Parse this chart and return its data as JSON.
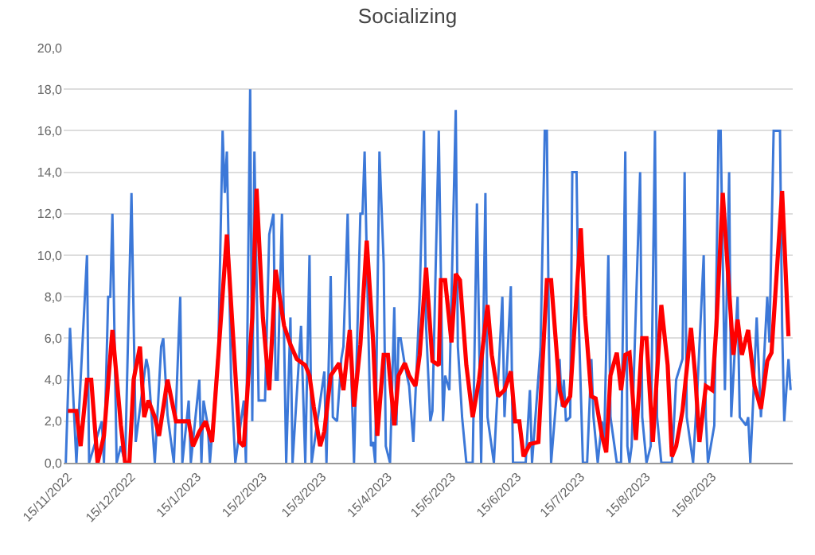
{
  "chart_data": {
    "type": "line",
    "title": "Socializing",
    "grid": "y",
    "marker": "none",
    "line_style": "solid",
    "xlim": [
      "2022-11-13",
      "2023-10-23"
    ],
    "xticks": [
      {
        "value": "2022-11-15",
        "label": "15/11/2022"
      },
      {
        "value": "2022-12-15",
        "label": "15/12/2022"
      },
      {
        "value": "2023-01-15",
        "label": "15/1/2023"
      },
      {
        "value": "2023-02-15",
        "label": "15/2/2023"
      },
      {
        "value": "2023-03-15",
        "label": "15/3/2023"
      },
      {
        "value": "2023-04-15",
        "label": "15/4/2023"
      },
      {
        "value": "2023-05-15",
        "label": "15/5/2023"
      },
      {
        "value": "2023-06-15",
        "label": "15/6/2023"
      },
      {
        "value": "2023-07-15",
        "label": "15/7/2023"
      },
      {
        "value": "2023-08-15",
        "label": "15/8/2023"
      },
      {
        "value": "2023-09-15",
        "label": "15/9/2023"
      }
    ],
    "ylim": [
      0,
      20
    ],
    "yticks": [
      {
        "value": 0,
        "label": "0,0"
      },
      {
        "value": 2,
        "label": "2,0"
      },
      {
        "value": 4,
        "label": "4,0"
      },
      {
        "value": 6,
        "label": "6,0"
      },
      {
        "value": 8,
        "label": "8,0"
      },
      {
        "value": 10,
        "label": "10,0"
      },
      {
        "value": 12,
        "label": "12,0"
      },
      {
        "value": 14,
        "label": "14,0"
      },
      {
        "value": 16,
        "label": "16,0"
      },
      {
        "value": 18,
        "label": "18,0"
      },
      {
        "value": 20,
        "label": "20,0"
      }
    ],
    "series": [
      {
        "color": "#3c78d8",
        "x": [
          "2022-11-14",
          "2022-11-16",
          "2022-11-19",
          "2022-11-24",
          "2022-11-25",
          "2022-12-01",
          "2022-12-02",
          "2022-12-04",
          "2022-12-05",
          "2022-12-06",
          "2022-12-08",
          "2022-12-10",
          "2022-12-12",
          "2022-12-15",
          "2022-12-17",
          "2022-12-22",
          "2022-12-23",
          "2022-12-26",
          "2022-12-29",
          "2022-12-30",
          "2023-01-01",
          "2023-01-04",
          "2023-01-07",
          "2023-01-08",
          "2023-01-11",
          "2023-01-12",
          "2023-01-16",
          "2023-01-17",
          "2023-01-18",
          "2023-01-20",
          "2023-01-21",
          "2023-01-25",
          "2023-01-27",
          "2023-01-28",
          "2023-01-29",
          "2023-01-31",
          "2023-02-02",
          "2023-02-06",
          "2023-02-07",
          "2023-02-09",
          "2023-02-10",
          "2023-02-11",
          "2023-02-13",
          "2023-02-16",
          "2023-02-18",
          "2023-02-20",
          "2023-02-21",
          "2023-02-22",
          "2023-02-24",
          "2023-02-26",
          "2023-02-28",
          "2023-03-01",
          "2023-03-05",
          "2023-03-07",
          "2023-03-09",
          "2023-03-10",
          "2023-03-16",
          "2023-03-17",
          "2023-03-19",
          "2023-03-20",
          "2023-03-22",
          "2023-03-24",
          "2023-03-25",
          "2023-03-27",
          "2023-03-28",
          "2023-03-30",
          "2023-04-02",
          "2023-04-03",
          "2023-04-04",
          "2023-04-05",
          "2023-04-07",
          "2023-04-08",
          "2023-04-09",
          "2023-04-11",
          "2023-04-13",
          "2023-04-14",
          "2023-04-16",
          "2023-04-18",
          "2023-04-19",
          "2023-04-20",
          "2023-04-21",
          "2023-04-23",
          "2023-04-25",
          "2023-04-27",
          "2023-04-29",
          "2023-04-30",
          "2023-05-02",
          "2023-05-03",
          "2023-05-05",
          "2023-05-06",
          "2023-05-09",
          "2023-05-11",
          "2023-05-12",
          "2023-05-14",
          "2023-05-17",
          "2023-05-18",
          "2023-05-20",
          "2023-05-22",
          "2023-05-25",
          "2023-05-27",
          "2023-05-29",
          "2023-05-31",
          "2023-06-01",
          "2023-06-04",
          "2023-06-08",
          "2023-06-09",
          "2023-06-12",
          "2023-06-13",
          "2023-06-19",
          "2023-06-21",
          "2023-06-22",
          "2023-06-26",
          "2023-06-28",
          "2023-06-29",
          "2023-06-30",
          "2023-07-01",
          "2023-07-05",
          "2023-07-06",
          "2023-07-07",
          "2023-07-08",
          "2023-07-10",
          "2023-07-11",
          "2023-07-13",
          "2023-07-14",
          "2023-07-16",
          "2023-07-18",
          "2023-07-20",
          "2023-07-21",
          "2023-07-23",
          "2023-07-25",
          "2023-07-26",
          "2023-07-28",
          "2023-07-29",
          "2023-08-01",
          "2023-08-03",
          "2023-08-05",
          "2023-08-06",
          "2023-08-07",
          "2023-08-08",
          "2023-08-12",
          "2023-08-13",
          "2023-08-15",
          "2023-08-17",
          "2023-08-19",
          "2023-08-20",
          "2023-08-22",
          "2023-08-27",
          "2023-08-29",
          "2023-09-01",
          "2023-09-02",
          "2023-09-03",
          "2023-09-06",
          "2023-09-08",
          "2023-09-11",
          "2023-09-12",
          "2023-09-13",
          "2023-09-16",
          "2023-09-18",
          "2023-09-19",
          "2023-09-21",
          "2023-09-23",
          "2023-09-24",
          "2023-09-27",
          "2023-09-28",
          "2023-10-01",
          "2023-10-02",
          "2023-10-03",
          "2023-10-04",
          "2023-10-06",
          "2023-10-08",
          "2023-10-11",
          "2023-10-12",
          "2023-10-14",
          "2023-10-17",
          "2023-10-18",
          "2023-10-19",
          "2023-10-21",
          "2023-10-22"
        ],
        "values": [
          0,
          6.5,
          0,
          10,
          0,
          2,
          0,
          8,
          8,
          12,
          0,
          0.8,
          0,
          13,
          1,
          5,
          4.5,
          0,
          5.6,
          6,
          2.3,
          0,
          8,
          0,
          3,
          0,
          4,
          0,
          3,
          1.8,
          0,
          5.5,
          16,
          13,
          15,
          4,
          0,
          3,
          0,
          18,
          2,
          15,
          3,
          3,
          11,
          12,
          4,
          4,
          12,
          0,
          7,
          0,
          6.6,
          0,
          10,
          0,
          4.4,
          0,
          9,
          2.2,
          2,
          5,
          5.6,
          12,
          6.6,
          0,
          12,
          12,
          15,
          10,
          0.8,
          1,
          0,
          15,
          9.6,
          0.8,
          0,
          7.5,
          1.8,
          6,
          6,
          4.7,
          3.7,
          1,
          5.6,
          8,
          16,
          6.6,
          2,
          2.5,
          16,
          2,
          4.2,
          3.5,
          17,
          5.6,
          2.2,
          0,
          0,
          12.5,
          0,
          13,
          2.2,
          0,
          8,
          2.2,
          8.5,
          0,
          0,
          3.5,
          0,
          5.5,
          16,
          16,
          5.6,
          0,
          5,
          2.7,
          4,
          2,
          2.2,
          14,
          14,
          7,
          0,
          0,
          5,
          2.2,
          0,
          2,
          0.8,
          10,
          2.2,
          0,
          0,
          15,
          0.8,
          0,
          0.8,
          14,
          2.2,
          0,
          0.8,
          16,
          2.2,
          0,
          0,
          4,
          5,
          14,
          2.2,
          0,
          3.5,
          10,
          2.2,
          0,
          1.8,
          16,
          16,
          3.5,
          14,
          2.2,
          8,
          2.2,
          1.8,
          2.2,
          0,
          2.2,
          7,
          2.2,
          8,
          5.8,
          16,
          16,
          6.6,
          2,
          5,
          3.5
        ]
      },
      {
        "color": "#ff0000",
        "x": [
          "2022-11-15",
          "2022-11-19",
          "2022-11-21",
          "2022-11-24",
          "2022-11-26",
          "2022-11-29",
          "2022-12-02",
          "2022-12-06",
          "2022-12-10",
          "2022-12-12",
          "2022-12-14",
          "2022-12-16",
          "2022-12-19",
          "2022-12-21",
          "2022-12-23",
          "2022-12-26",
          "2022-12-28",
          "2023-01-01",
          "2023-01-05",
          "2023-01-11",
          "2023-01-13",
          "2023-01-16",
          "2023-01-19",
          "2023-01-22",
          "2023-01-25",
          "2023-01-29",
          "2023-02-01",
          "2023-02-04",
          "2023-02-06",
          "2023-02-10",
          "2023-02-12",
          "2023-02-15",
          "2023-02-18",
          "2023-02-21",
          "2023-02-25",
          "2023-02-28",
          "2023-03-03",
          "2023-03-07",
          "2023-03-09",
          "2023-03-11",
          "2023-03-14",
          "2023-03-16",
          "2023-03-19",
          "2023-03-23",
          "2023-03-25",
          "2023-03-28",
          "2023-03-30",
          "2023-04-02",
          "2023-04-05",
          "2023-04-08",
          "2023-04-10",
          "2023-04-13",
          "2023-04-15",
          "2023-04-18",
          "2023-04-20",
          "2023-04-23",
          "2023-04-25",
          "2023-04-28",
          "2023-04-30",
          "2023-05-03",
          "2023-05-06",
          "2023-05-09",
          "2023-05-10",
          "2023-05-12",
          "2023-05-15",
          "2023-05-17",
          "2023-05-19",
          "2023-05-22",
          "2023-05-25",
          "2023-05-28",
          "2023-06-01",
          "2023-06-03",
          "2023-06-06",
          "2023-06-09",
          "2023-06-12",
          "2023-06-14",
          "2023-06-16",
          "2023-06-18",
          "2023-06-21",
          "2023-06-25",
          "2023-06-29",
          "2023-07-01",
          "2023-07-05",
          "2023-07-07",
          "2023-07-10",
          "2023-07-15",
          "2023-07-17",
          "2023-07-20",
          "2023-07-22",
          "2023-07-25",
          "2023-07-27",
          "2023-07-29",
          "2023-08-01",
          "2023-08-03",
          "2023-08-05",
          "2023-08-07",
          "2023-08-10",
          "2023-08-13",
          "2023-08-15",
          "2023-08-18",
          "2023-08-22",
          "2023-08-25",
          "2023-08-27",
          "2023-08-29",
          "2023-09-01",
          "2023-09-05",
          "2023-09-07",
          "2023-09-09",
          "2023-09-12",
          "2023-09-15",
          "2023-09-17",
          "2023-09-20",
          "2023-09-23",
          "2023-09-25",
          "2023-09-27",
          "2023-09-29",
          "2023-10-02",
          "2023-10-05",
          "2023-10-08",
          "2023-10-11",
          "2023-10-13",
          "2023-10-16",
          "2023-10-18",
          "2023-10-19",
          "2023-10-21"
        ],
        "values": [
          2.5,
          2.5,
          0.8,
          4,
          4,
          0,
          1.3,
          6.4,
          1.8,
          0,
          0,
          4,
          5.6,
          2.2,
          3,
          2.2,
          1.3,
          4,
          2,
          2,
          0.8,
          1.5,
          2,
          1,
          5.2,
          11,
          6,
          1,
          0.8,
          7,
          13.2,
          7,
          3.5,
          9.3,
          6.6,
          5.7,
          5,
          4.7,
          4.2,
          2.7,
          0.8,
          1.5,
          4.2,
          4.8,
          3.5,
          6.4,
          2.7,
          5.7,
          10.7,
          5.9,
          1.3,
          5.2,
          5.2,
          1.8,
          4.2,
          4.8,
          4.2,
          3.7,
          5.2,
          9.4,
          4.9,
          4.7,
          8.8,
          8.8,
          5.8,
          9.1,
          8.8,
          4.7,
          2.2,
          4,
          7.6,
          5.2,
          3.2,
          3.5,
          4.4,
          2,
          2,
          0.3,
          0.9,
          1,
          8.8,
          8.8,
          3.5,
          2.7,
          3.2,
          11.3,
          7.1,
          3.2,
          3.1,
          1.3,
          0.5,
          4.2,
          5.3,
          3.5,
          5.2,
          5.3,
          1.1,
          6,
          6,
          1,
          7.6,
          4.7,
          0.3,
          0.8,
          2.5,
          6.5,
          4.2,
          1,
          3.7,
          3.5,
          6.6,
          13,
          8.3,
          5.2,
          6.9,
          5.2,
          6.4,
          3.7,
          2.6,
          4.9,
          5.3,
          10,
          13.1,
          10.8,
          6.1
        ]
      }
    ]
  }
}
